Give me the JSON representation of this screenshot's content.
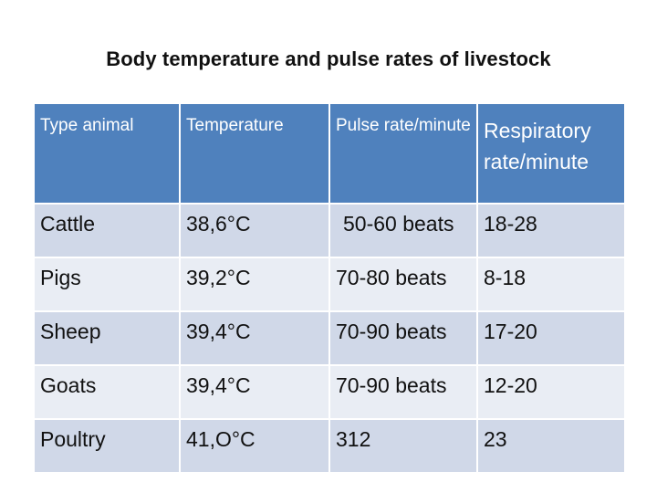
{
  "title": "Body temperature and pulse rates of livestock",
  "table": {
    "headers": [
      "Type animal",
      "Temperature",
      "Pulse rate/minute",
      "Respiratory rate/minute"
    ],
    "rows": [
      [
        "Cattle",
        "38,6°C",
        "50-60 beats",
        "18-28"
      ],
      [
        "Pigs",
        "39,2°C",
        "70-80 beats",
        "8-18"
      ],
      [
        "Sheep",
        "39,4°C",
        "70-90 beats",
        "17-20"
      ],
      [
        "Goats",
        "39,4°C",
        "70-90 beats",
        "12-20"
      ],
      [
        "Poultry",
        "41,O°C",
        "312",
        "23"
      ]
    ]
  },
  "colors": {
    "header_bg": "#4f81bd",
    "row_dark": "#d0d8e8",
    "row_light": "#e9edf4"
  }
}
